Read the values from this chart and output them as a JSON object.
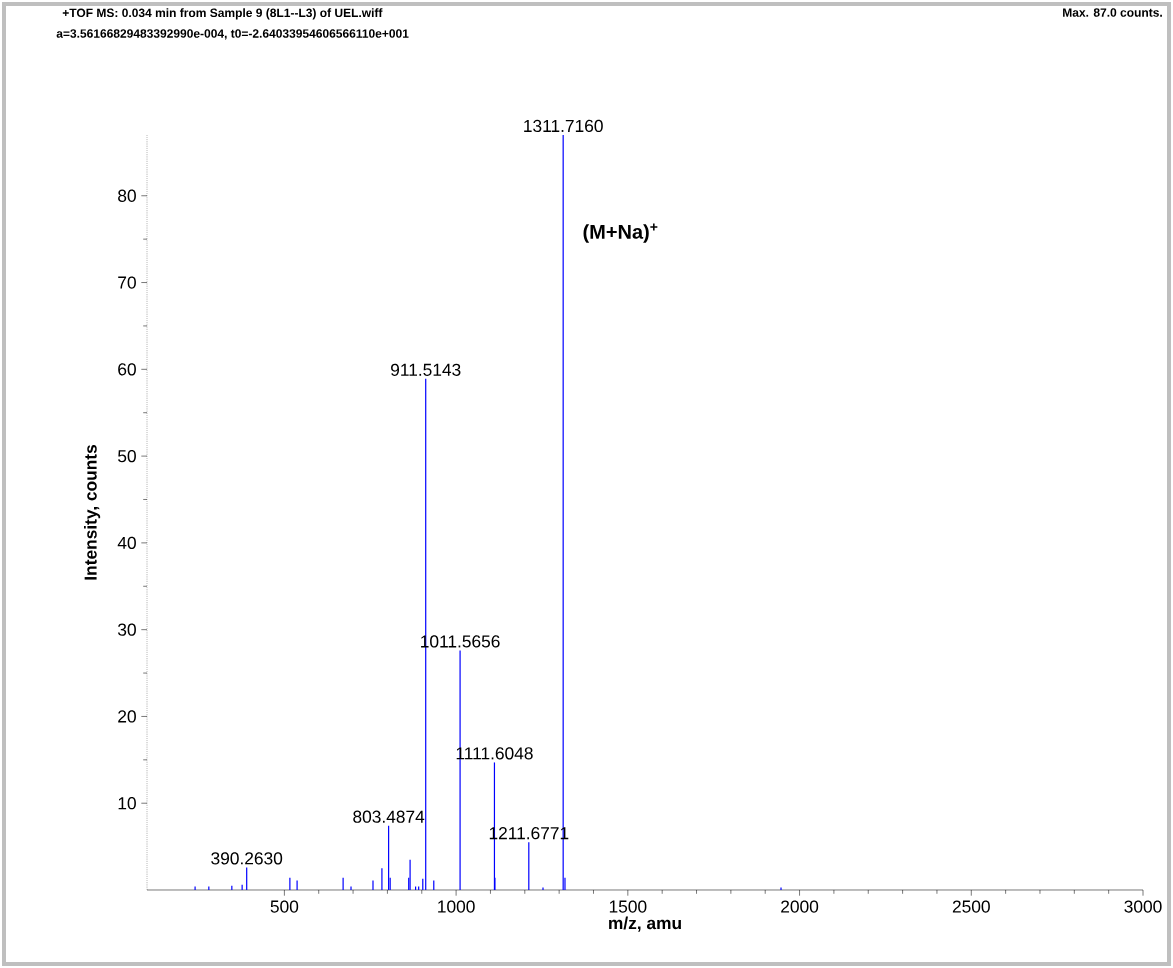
{
  "chart_data": {
    "type": "bar",
    "title": "+TOF MS: 0.034 min from Sample 9 (8L1--L3) of UEL.wiff",
    "subtitle": "a=3.56166829483392990e-004, t0=-2.64033954606566110e+001",
    "xlabel": "m/z, amu",
    "ylabel": "Intensity, counts",
    "annotations": [
      "Max. 87.0 counts.",
      "(M+Na)$^{+}$",
      {
        "text": "390.2630",
        "x": 390.263,
        "y": 2.6
      },
      {
        "text": "803.4874",
        "x": 803.4874,
        "y": 7.4
      },
      {
        "text": "911.5143",
        "x": 911.5143,
        "y": 58.9
      },
      {
        "text": "1011.5656",
        "x": 1011.5656,
        "y": 27.6
      },
      {
        "text": "1111.6048",
        "x": 1111.6048,
        "y": 14.7
      },
      {
        "text": "1211.6771",
        "x": 1211.6771,
        "y": 5.5
      },
      {
        "text": "1311.7160",
        "x": 1311.716,
        "y": 87
      }
    ],
    "x": [
      240,
      280,
      347,
      377,
      390.263,
      516,
      537,
      671,
      694,
      758,
      784,
      803.4874,
      808,
      862,
      866,
      882,
      891,
      903,
      911.5143,
      935,
      1011.5656,
      1111.6048,
      1113,
      1211.6771,
      1253,
      1311.716,
      1317,
      1946
    ],
    "values": [
      0.4,
      0.4,
      0.5,
      0.6,
      2.6,
      1.4,
      1.1,
      1.4,
      0.4,
      1.1,
      2.5,
      7.4,
      1.4,
      1.4,
      3.5,
      0.4,
      0.4,
      1.3,
      58.9,
      1.1,
      27.6,
      14.7,
      1.4,
      5.5,
      0.3,
      87,
      1.4,
      0.3
    ],
    "color": "#0000ff",
    "xlim": [
      100,
      3000
    ],
    "ylim": [
      0,
      87
    ],
    "xticks": [
      500,
      1000,
      1500,
      2000,
      2500,
      3000
    ],
    "yticks": [
      10,
      20,
      30,
      40,
      50,
      60,
      70,
      80
    ],
    "grid": false
  }
}
